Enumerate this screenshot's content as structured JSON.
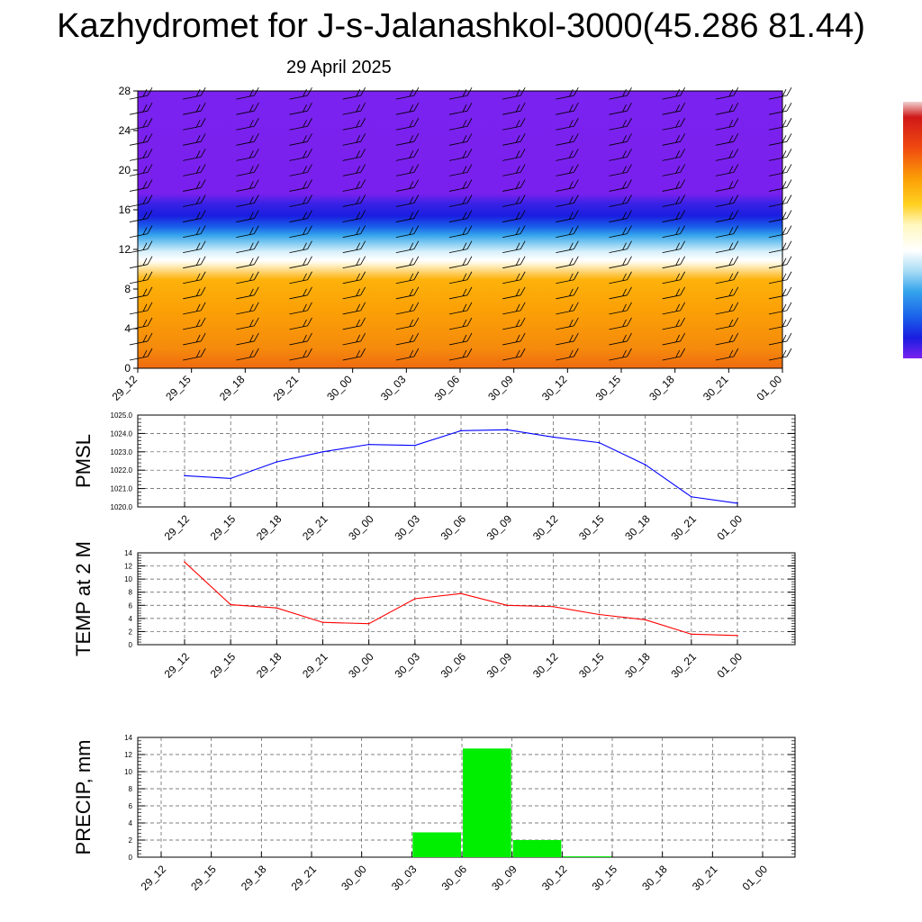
{
  "header": {
    "title": "Kazhydromet for J-s-Jalanashkol-3000(45.286 81.44)",
    "date": "29 April 2025"
  },
  "time_labels": [
    "29_12",
    "29_15",
    "29_18",
    "29_21",
    "30_00",
    "30_03",
    "30_06",
    "30_09",
    "30_12",
    "30_15",
    "30_18",
    "30_21",
    "01_00"
  ],
  "colors": {
    "pmsl_line": "#0000ff",
    "temp_line": "#ff0000",
    "precip_bar": "#00ee00",
    "grid": "#000000"
  },
  "chart_data": [
    {
      "type": "heatmap",
      "title": "",
      "ylim": [
        0,
        28
      ],
      "yticks": [
        0,
        4,
        8,
        12,
        16,
        20,
        24,
        28
      ],
      "categories": [
        "29_12",
        "29_15",
        "29_18",
        "29_21",
        "30_00",
        "30_03",
        "30_06",
        "30_09",
        "30_12",
        "30_15",
        "30_18",
        "30_21",
        "01_00"
      ],
      "layers": [
        {
          "from": 0,
          "to": 10.5,
          "description": "orange (warm)"
        },
        {
          "from": 10.5,
          "to": 13.5,
          "description": "white to light blue"
        },
        {
          "from": 13.5,
          "to": 17.5,
          "description": "blue"
        },
        {
          "from": 17.5,
          "to": 28,
          "description": "violet"
        }
      ],
      "overlay": "wind barbs",
      "colorbar": "right edge, violet-blue-white-yellow-red"
    },
    {
      "type": "line",
      "ylabel": "PMSL",
      "ylim": [
        1020.0,
        1025.0
      ],
      "yticks": [
        "1020.0",
        "1021.0",
        "1022.0",
        "1023.0",
        "1024.0",
        "1025.0"
      ],
      "categories": [
        "29_12",
        "29_15",
        "29_18",
        "29_21",
        "30_00",
        "30_03",
        "30_06",
        "30_09",
        "30_12",
        "30_15",
        "30_18",
        "30_21",
        "01_00"
      ],
      "values": [
        1021.7,
        1021.55,
        1022.45,
        1023.0,
        1023.4,
        1023.35,
        1024.15,
        1024.2,
        1023.8,
        1023.5,
        1022.3,
        1020.55,
        1020.2
      ],
      "grid": true
    },
    {
      "type": "line",
      "ylabel": "TEMP at 2 M",
      "ylim": [
        0,
        14
      ],
      "yticks": [
        "0",
        "2",
        "4",
        "6",
        "8",
        "10",
        "12",
        "14"
      ],
      "categories": [
        "29_12",
        "29_15",
        "29_18",
        "29_21",
        "30_00",
        "30_03",
        "30_06",
        "30_09",
        "30_12",
        "30_15",
        "30_18",
        "30_21",
        "01_00"
      ],
      "values": [
        12.6,
        6.1,
        5.6,
        3.4,
        3.2,
        7.0,
        7.8,
        6.0,
        5.8,
        4.6,
        3.8,
        1.6,
        1.4
      ],
      "grid": true
    },
    {
      "type": "bar",
      "ylabel": "PRECIP, mm",
      "ylim": [
        0,
        14
      ],
      "yticks": [
        "0",
        "2",
        "4",
        "6",
        "8",
        "10",
        "12",
        "14"
      ],
      "categories": [
        "29_12",
        "29_15",
        "29_18",
        "29_21",
        "30_00",
        "30_03",
        "30_06",
        "30_09",
        "30_12",
        "30_15",
        "30_18",
        "30_21",
        "01_00"
      ],
      "bars": [
        {
          "between": [
            "30_03",
            "30_06"
          ],
          "value": 2.9
        },
        {
          "between": [
            "30_06",
            "30_09"
          ],
          "value": 12.7
        },
        {
          "between": [
            "30_09",
            "30_12"
          ],
          "value": 2.0
        },
        {
          "between": [
            "30_12",
            "30_15"
          ],
          "value": 0.1
        }
      ],
      "grid": true
    }
  ]
}
